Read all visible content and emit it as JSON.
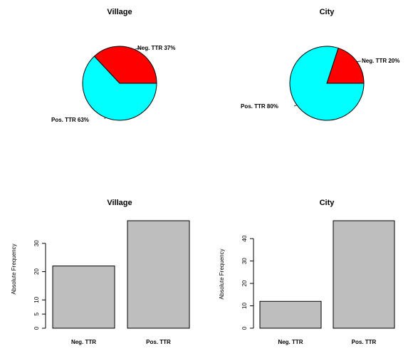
{
  "chart_data": [
    {
      "type": "pie",
      "title": "Village",
      "slices": [
        {
          "label": "Neg. TTR 37%",
          "value": 37,
          "color": "#ff0000"
        },
        {
          "label": "Pos. TTR 63%",
          "value": 63,
          "color": "#00ffff"
        }
      ]
    },
    {
      "type": "pie",
      "title": "City",
      "slices": [
        {
          "label": "Neg. TTR 20%",
          "value": 20,
          "color": "#ff0000"
        },
        {
          "label": "Pos. TTR 80%",
          "value": 80,
          "color": "#00ffff"
        }
      ]
    },
    {
      "type": "bar",
      "title": "Village",
      "ylabel": "Absolute Frequency",
      "categories": [
        "Neg. TTR",
        "Pos. TTR"
      ],
      "values": [
        22,
        38
      ],
      "ylim": [
        0,
        38
      ],
      "yticks": [
        0,
        5,
        10,
        20,
        30
      ],
      "color": "#bebebe"
    },
    {
      "type": "bar",
      "title": "City",
      "ylabel": "Absolute Frequency",
      "categories": [
        "Neg. TTR",
        "Pos. TTR"
      ],
      "values": [
        12,
        48
      ],
      "ylim": [
        0,
        48
      ],
      "yticks": [
        0,
        10,
        20,
        30,
        40
      ],
      "color": "#bebebe"
    }
  ]
}
